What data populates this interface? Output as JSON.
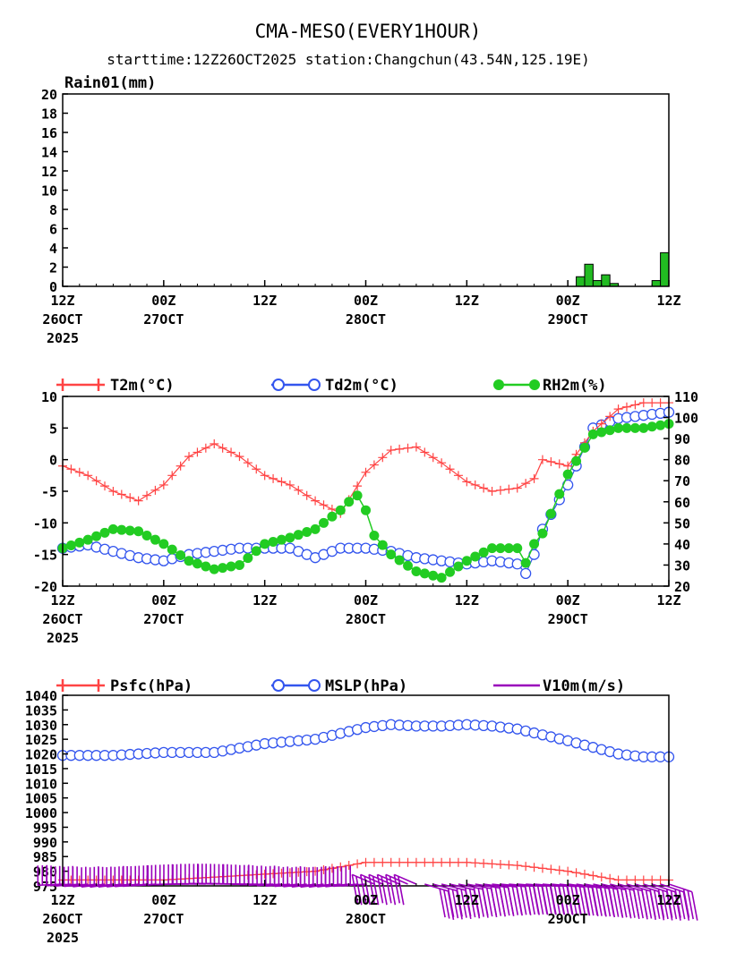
{
  "title": "CMA-MESO(EVERY1HOUR)",
  "subtitle": "starttime:12Z26OCT2025   station:Changchun(43.54N,125.19E)",
  "x_ticks": [
    {
      "h": 0,
      "top": "12Z",
      "mid": "26OCT",
      "bot": "2025"
    },
    {
      "h": 12,
      "top": "00Z",
      "mid": "27OCT",
      "bot": ""
    },
    {
      "h": 24,
      "top": "12Z",
      "mid": "",
      "bot": ""
    },
    {
      "h": 36,
      "top": "00Z",
      "mid": "28OCT",
      "bot": ""
    },
    {
      "h": 48,
      "top": "12Z",
      "mid": "",
      "bot": ""
    },
    {
      "h": 60,
      "top": "00Z",
      "mid": "29OCT",
      "bot": ""
    },
    {
      "h": 72,
      "top": "12Z",
      "mid": "",
      "bot": ""
    }
  ],
  "colors": {
    "t2m": "#ff4444",
    "td2m": "#3355ee",
    "rh2m": "#22cc22",
    "rain": "#22bb22",
    "psfc": "#ff4444",
    "mslp": "#3355ee",
    "wind": "#9900bb"
  },
  "chart_data": [
    {
      "type": "bar",
      "title": "Rain01(mm)",
      "x": [
        62,
        63,
        64,
        65,
        66,
        67,
        71,
        72
      ],
      "values": [
        1.0,
        2.3,
        0.6,
        1.2,
        0.3,
        0.0,
        0.6,
        3.5
      ],
      "x_range": [
        0,
        72
      ],
      "ylim": [
        0,
        20
      ],
      "y_ticks": [
        0,
        2,
        4,
        6,
        8,
        10,
        12,
        14,
        16,
        18,
        20
      ]
    },
    {
      "type": "line",
      "x_range": [
        0,
        72
      ],
      "ylim_left": [
        -20,
        10
      ],
      "y_ticks_left": [
        -20,
        -15,
        -10,
        -5,
        0,
        5,
        10
      ],
      "ylim_right": [
        20,
        110
      ],
      "y_ticks_right": [
        20,
        30,
        40,
        50,
        60,
        70,
        80,
        90,
        100,
        110
      ],
      "series": [
        {
          "name": "T2m(°C)",
          "axis": "left",
          "marker": "plus",
          "x": [
            0,
            3,
            6,
            9,
            12,
            15,
            18,
            21,
            24,
            27,
            30,
            33,
            36,
            39,
            42,
            45,
            48,
            51,
            54,
            56,
            57,
            60,
            63,
            66,
            69,
            72
          ],
          "values": [
            -1,
            -2.5,
            -5,
            -6.5,
            -4,
            0.5,
            2.5,
            0.5,
            -2.5,
            -4,
            -6.5,
            -8.5,
            -2,
            1.5,
            2,
            -0.5,
            -3.5,
            -5,
            -4.5,
            -3,
            0,
            -1,
            4.5,
            8,
            9,
            9
          ]
        },
        {
          "name": "Td2m(°C)",
          "axis": "left",
          "marker": "circle",
          "x": [
            0,
            3,
            6,
            9,
            12,
            15,
            18,
            21,
            24,
            27,
            30,
            33,
            36,
            39,
            42,
            45,
            48,
            51,
            54,
            55,
            56,
            57,
            60,
            63,
            66,
            69,
            72
          ],
          "values": [
            -14,
            -13.5,
            -14.5,
            -15.5,
            -16,
            -15,
            -14.5,
            -14,
            -14,
            -14,
            -15.5,
            -14,
            -14,
            -14.5,
            -15.5,
            -16,
            -16.5,
            -16,
            -16.5,
            -18,
            -15,
            -11,
            -4,
            5,
            6.5,
            7,
            7.5
          ]
        },
        {
          "name": "RH2m(%)",
          "axis": "right",
          "marker": "dot",
          "x": [
            0,
            3,
            6,
            9,
            12,
            15,
            18,
            21,
            24,
            27,
            30,
            33,
            34,
            35,
            36,
            37,
            39,
            42,
            45,
            48,
            51,
            54,
            55,
            56,
            57,
            60,
            63,
            66,
            69,
            72
          ],
          "values": [
            38,
            42,
            47,
            46,
            40,
            32,
            28,
            30,
            40,
            43,
            47,
            56,
            60,
            63,
            56,
            44,
            35,
            27,
            24,
            32,
            38,
            38,
            31,
            40,
            45,
            73,
            92,
            95,
            95,
            97
          ]
        }
      ]
    },
    {
      "type": "line",
      "x_range": [
        0,
        72
      ],
      "ylim": [
        975,
        1040
      ],
      "y_ticks": [
        975,
        980,
        985,
        990,
        995,
        1000,
        1005,
        1010,
        1015,
        1020,
        1025,
        1030,
        1035,
        1040
      ],
      "series": [
        {
          "name": "Psfc(hPa)",
          "marker": "plus",
          "x": [
            0,
            6,
            12,
            18,
            24,
            30,
            36,
            42,
            48,
            54,
            60,
            66,
            72
          ],
          "values": [
            977,
            977,
            977,
            978,
            979,
            980,
            983,
            983,
            983,
            982,
            980,
            977,
            977
          ]
        },
        {
          "name": "MSLP(hPa)",
          "marker": "circle",
          "x": [
            0,
            6,
            12,
            18,
            24,
            30,
            36,
            39,
            42,
            45,
            48,
            51,
            54,
            60,
            66,
            69,
            72
          ],
          "values": [
            1019.5,
            1019.5,
            1020.5,
            1020.5,
            1023.5,
            1025,
            1029,
            1030,
            1029.5,
            1029.5,
            1030,
            1029.5,
            1028.5,
            1024.5,
            1020,
            1019,
            1019
          ]
        },
        {
          "name": "V10m(m/s)",
          "marker": "barb"
        }
      ]
    }
  ]
}
